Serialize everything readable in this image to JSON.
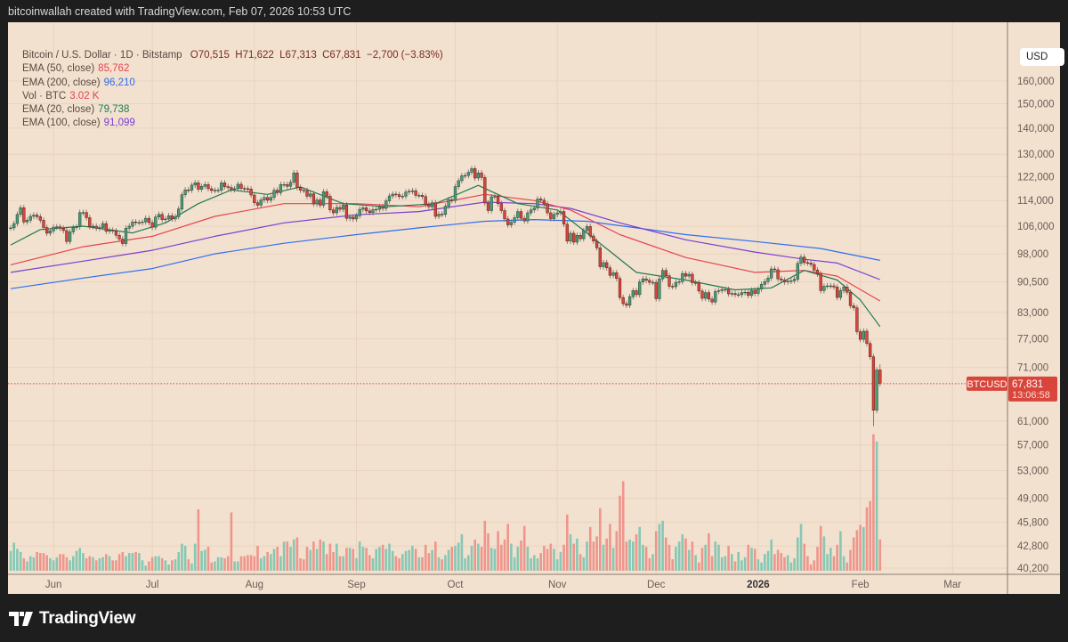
{
  "credit": "bitcoinwallah created with TradingView.com, Feb 07, 2026 10:53 UTC",
  "legend": {
    "symbol": "Bitcoin / U.S. Dollar · 1D · Bitstamp",
    "ohlc": "O70,515  H71,622  L67,313  C67,831  −2,700 (−3.83%)",
    "indicators": [
      {
        "label": "EMA (50, close)",
        "value": "85,762",
        "color": "#e8424f"
      },
      {
        "label": "EMA (200, close)",
        "value": "96,210",
        "color": "#2f6df0"
      },
      {
        "label": "Vol · BTC",
        "value": "3.02 K",
        "color": "#e8424f"
      },
      {
        "label": "EMA (20, close)",
        "value": "79,738",
        "color": "#1e7a52"
      },
      {
        "label": "EMA (100, close)",
        "value": "91,099",
        "color": "#7a3fd0"
      }
    ]
  },
  "currency_button": "USD",
  "last_price": {
    "symbol": "BTCUSD",
    "price": "67,831",
    "countdown": "13:06:58",
    "value": 67831,
    "color": "#d9453a"
  },
  "brand": "TradingView",
  "chart_data": {
    "type": "candlestick",
    "interval": "1D",
    "start_date": "2025-05-19",
    "end_date": "2026-02-07",
    "y_scale": "log",
    "ylim": [
      38500,
      175000
    ],
    "grid": true,
    "y_ticks": [
      160000,
      150000,
      140000,
      130000,
      122000,
      114000,
      106000,
      98000,
      90500,
      83000,
      77000,
      71000,
      61000,
      57000,
      53000,
      49000,
      45800,
      42800,
      40200
    ],
    "y_tick_labels": [
      "160,000",
      "150,000",
      "140,000",
      "130,000",
      "122,000",
      "114,000",
      "106,000",
      "98,000",
      "90,500",
      "83,000",
      "77,000",
      "71,000",
      "61,000",
      "57,000",
      "53,000",
      "49,000",
      "45,800",
      "42,800",
      "40,200"
    ],
    "x_ticks": [
      {
        "date": "2025-06-01",
        "label": "Jun"
      },
      {
        "date": "2025-07-01",
        "label": "Jul"
      },
      {
        "date": "2025-08-01",
        "label": "Aug"
      },
      {
        "date": "2025-09-01",
        "label": "Sep"
      },
      {
        "date": "2025-10-01",
        "label": "Oct"
      },
      {
        "date": "2025-11-01",
        "label": "Nov"
      },
      {
        "date": "2025-12-01",
        "label": "Dec"
      },
      {
        "date": "2026-01-01",
        "label": "2026",
        "bold": true
      },
      {
        "date": "2026-02-01",
        "label": "Feb"
      },
      {
        "date": "2026-03-01",
        "label": "Mar"
      }
    ],
    "colors": {
      "up": "#4c9a76",
      "down": "#d8453a",
      "vol_up": "#86c8b4",
      "vol_down": "#f0958c"
    },
    "close_k": [
      105.5,
      106.8,
      109.6,
      111.7,
      107.3,
      107.8,
      109.0,
      109.4,
      108.9,
      107.8,
      105.6,
      103.9,
      104.6,
      105.7,
      105.8,
      105.4,
      104.7,
      101.5,
      104.3,
      105.6,
      105.8,
      110.2,
      110.2,
      108.6,
      105.9,
      106.0,
      105.4,
      105.6,
      106.8,
      104.5,
      104.8,
      104.6,
      103.3,
      102.2,
      100.9,
      105.4,
      106.0,
      107.3,
      107.1,
      107.1,
      107.3,
      108.4,
      107.1,
      105.7,
      108.8,
      109.6,
      108.0,
      108.2,
      109.2,
      108.2,
      108.9,
      111.3,
      115.9,
      117.5,
      117.4,
      119.1,
      119.9,
      117.7,
      118.7,
      119.3,
      117.9,
      117.3,
      117.4,
      117.4,
      119.9,
      118.6,
      118.3,
      117.6,
      117.9,
      119.4,
      118.0,
      117.9,
      117.8,
      115.8,
      113.3,
      112.5,
      114.2,
      115.0,
      114.1,
      115.0,
      117.4,
      116.6,
      119.3,
      119.3,
      118.7,
      120.1,
      123.3,
      118.3,
      117.4,
      117.3,
      115.4,
      116.2,
      112.9,
      114.2,
      112.5,
      116.9,
      115.4,
      111.0,
      110.1,
      111.8,
      111.2,
      112.6,
      108.4,
      108.8,
      108.2,
      109.2,
      111.2,
      111.7,
      110.7,
      110.2,
      111.1,
      111.2,
      112.1,
      111.5,
      113.9,
      115.5,
      116.1,
      115.9,
      115.3,
      115.4,
      116.8,
      117.0,
      117.2,
      115.7,
      115.7,
      115.3,
      112.7,
      112.0,
      113.3,
      109.0,
      109.7,
      109.6,
      112.2,
      114.3,
      114.0,
      118.6,
      120.6,
      122.3,
      122.4,
      123.5,
      124.8,
      121.5,
      123.3,
      121.7,
      113.2,
      110.8,
      115.2,
      115.3,
      113.0,
      110.8,
      108.2,
      106.4,
      107.2,
      108.6,
      110.5,
      108.4,
      107.6,
      110.1,
      111.0,
      111.6,
      114.5,
      114.1,
      112.9,
      110.1,
      108.3,
      109.6,
      110.1,
      110.5,
      106.6,
      101.6,
      103.9,
      101.3,
      103.3,
      102.3,
      104.7,
      105.9,
      103.1,
      101.6,
      99.7,
      94.5,
      95.6,
      94.2,
      92.2,
      92.9,
      91.4,
      86.6,
      85.1,
      84.7,
      86.8,
      88.3,
      87.3,
      90.5,
      91.3,
      90.9,
      90.4,
      90.4,
      86.3,
      91.3,
      93.5,
      92.1,
      89.4,
      89.3,
      90.4,
      90.6,
      92.7,
      92.0,
      92.5,
      90.3,
      90.3,
      88.2,
      86.4,
      87.8,
      86.2,
      85.5,
      88.1,
      88.3,
      88.6,
      88.6,
      87.5,
      87.6,
      87.3,
      87.3,
      87.8,
      87.9,
      87.1,
      88.4,
      87.6,
      88.7,
      89.9,
      90.6,
      91.5,
      93.9,
      93.7,
      91.3,
      91.0,
      90.5,
      90.7,
      90.8,
      91.2,
      95.4,
      97.1,
      95.6,
      95.5,
      95.1,
      93.6,
      92.6,
      88.3,
      89.4,
      89.5,
      89.5,
      89.2,
      86.6,
      88.3,
      89.2,
      87.9,
      84.6,
      84.1,
      78.6,
      76.9,
      78.7,
      76.0,
      73.2,
      62.9,
      70.515,
      67.831
    ],
    "volume_k_btc": [
      1.9,
      2.7,
      2.1,
      1.8,
      1.2,
      0.9,
      1.4,
      1.3,
      1.8,
      1.7,
      1.7,
      1.5,
      1.2,
      1.0,
      1.3,
      1.6,
      1.6,
      1.3,
      1.0,
      1.4,
      1.9,
      2.2,
      1.7,
      1.2,
      1.4,
      1.3,
      1.0,
      1.2,
      1.3,
      1.6,
      1.4,
      1.0,
      1.0,
      1.6,
      1.8,
      1.4,
      1.7,
      1.7,
      1.8,
      1.7,
      1.0,
      0.5,
      0.9,
      1.3,
      1.4,
      1.4,
      1.2,
      1.0,
      0.6,
      1.0,
      1.1,
      1.8,
      2.6,
      2.4,
      1.1,
      0.7,
      2.6,
      5.9,
      1.9,
      2.0,
      2.3,
      0.8,
      0.9,
      1.3,
      1.3,
      1.2,
      1.4,
      5.6,
      0.9,
      0.9,
      1.4,
      1.4,
      1.5,
      1.5,
      1.4,
      2.4,
      1.2,
      1.4,
      1.8,
      1.6,
      2.1,
      2.3,
      1.4,
      2.8,
      2.8,
      2.3,
      3.0,
      3.2,
      1.2,
      1.1,
      2.3,
      2.0,
      2.8,
      2.1,
      3.0,
      2.8,
      1.6,
      2.6,
      1.8,
      2.6,
      1.4,
      1.4,
      2.2,
      2.2,
      2.1,
      1.2,
      2.8,
      2.3,
      2.2,
      1.5,
      1.2,
      2.1,
      2.3,
      2.5,
      2.1,
      2.6,
      1.9,
      1.4,
      1.2,
      1.6,
      1.9,
      2.0,
      2.4,
      2.1,
      1.3,
      1.3,
      2.5,
      1.7,
      2.0,
      2.8,
      1.3,
      1.1,
      1.5,
      2.0,
      2.3,
      2.4,
      2.7,
      3.5,
      1.2,
      1.5,
      2.4,
      3.0,
      2.6,
      2.3,
      4.8,
      3.6,
      2.2,
      2.1,
      3.8,
      2.5,
      3.0,
      4.5,
      2.6,
      1.3,
      2.3,
      2.9,
      4.3,
      2.3,
      1.2,
      1.5,
      1.2,
      1.7,
      2.4,
      2.1,
      2.6,
      2.1,
      1.1,
      1.8,
      2.5,
      5.4,
      3.5,
      2.6,
      3.1,
      1.6,
      1.3,
      2.8,
      4.2,
      2.8,
      3.3,
      6.0,
      2.5,
      3.1,
      4.5,
      2.2,
      3.8,
      7.2,
      8.6,
      2.8,
      3.0,
      2.8,
      3.5,
      4.2,
      2.5,
      2.3,
      1.2,
      1.6,
      3.8,
      4.5,
      4.8,
      3.2,
      2.5,
      1.1,
      2.3,
      2.8,
      3.5,
      3.1,
      2.0,
      2.8,
      1.5,
      0.8,
      2.2,
      2.5,
      3.6,
      1.4,
      2.8,
      2.5,
      1.3,
      1.4,
      2.4,
      1.6,
      0.9,
      1.8,
      1.0,
      1.3,
      2.5,
      2.2,
      2.1,
      1.1,
      0.8,
      1.6,
      1.9,
      3.0,
      1.6,
      2.0,
      1.7,
      1.3,
      1.5,
      0.8,
      1.2,
      3.2,
      4.5,
      2.6,
      1.4,
      0.6,
      1.0,
      2.3,
      4.3,
      3.3,
      1.6,
      2.2,
      1.4,
      2.5,
      3.8,
      1.4,
      0.8,
      2.0,
      3.2,
      3.9,
      4.4,
      4.2,
      6.1,
      6.7,
      13.1,
      12.4,
      3.02
    ],
    "last_candle": {
      "open": 70515,
      "high": 71622,
      "low": 67313,
      "close": 67831
    },
    "ema_series": [
      {
        "name": "EMA (200, close)",
        "color": "#2f6df0",
        "points": [
          [
            "2025-05-19",
            88.8
          ],
          [
            "2025-06-10",
            91.5
          ],
          [
            "2025-07-01",
            94
          ],
          [
            "2025-07-20",
            98
          ],
          [
            "2025-08-10",
            101
          ],
          [
            "2025-09-01",
            103.5
          ],
          [
            "2025-09-20",
            105.5
          ],
          [
            "2025-10-10",
            107.5
          ],
          [
            "2025-10-25",
            108
          ],
          [
            "2025-11-10",
            107.5
          ],
          [
            "2025-11-25",
            105.5
          ],
          [
            "2025-12-10",
            103.5
          ],
          [
            "2025-12-31",
            101.5
          ],
          [
            "2026-01-20",
            99.5
          ],
          [
            "2026-02-07",
            96.21
          ]
        ]
      },
      {
        "name": "EMA (100, close)",
        "color": "#7a3fd0",
        "points": [
          [
            "2025-05-19",
            93
          ],
          [
            "2025-06-10",
            96
          ],
          [
            "2025-07-01",
            99
          ],
          [
            "2025-07-20",
            103
          ],
          [
            "2025-08-10",
            107
          ],
          [
            "2025-09-01",
            109.5
          ],
          [
            "2025-09-20",
            110.5
          ],
          [
            "2025-10-10",
            113.5
          ],
          [
            "2025-10-25",
            113
          ],
          [
            "2025-11-05",
            111.5
          ],
          [
            "2025-11-20",
            107
          ],
          [
            "2025-12-10",
            102
          ],
          [
            "2025-12-31",
            98.5
          ],
          [
            "2026-01-15",
            96.5
          ],
          [
            "2026-01-25",
            95.5
          ],
          [
            "2026-02-07",
            91.1
          ]
        ]
      },
      {
        "name": "EMA (50, close)",
        "color": "#e8424f",
        "points": [
          [
            "2025-05-19",
            95
          ],
          [
            "2025-06-10",
            100
          ],
          [
            "2025-07-01",
            103
          ],
          [
            "2025-07-20",
            109
          ],
          [
            "2025-08-10",
            113
          ],
          [
            "2025-09-01",
            113
          ],
          [
            "2025-09-20",
            112
          ],
          [
            "2025-10-10",
            116
          ],
          [
            "2025-10-25",
            114
          ],
          [
            "2025-11-05",
            111
          ],
          [
            "2025-11-20",
            103.5
          ],
          [
            "2025-12-10",
            97
          ],
          [
            "2025-12-31",
            93
          ],
          [
            "2026-01-15",
            93.5
          ],
          [
            "2026-01-25",
            92
          ],
          [
            "2026-02-07",
            85.76
          ]
        ]
      },
      {
        "name": "EMA (20, close)",
        "color": "#1e7a52",
        "points": [
          [
            "2025-05-19",
            100.5
          ],
          [
            "2025-05-28",
            105
          ],
          [
            "2025-06-10",
            106
          ],
          [
            "2025-06-25",
            104
          ],
          [
            "2025-07-05",
            107
          ],
          [
            "2025-07-15",
            113
          ],
          [
            "2025-07-25",
            117.5
          ],
          [
            "2025-08-05",
            116
          ],
          [
            "2025-08-15",
            118.5
          ],
          [
            "2025-08-28",
            113
          ],
          [
            "2025-09-10",
            112
          ],
          [
            "2025-09-25",
            113
          ],
          [
            "2025-10-08",
            119
          ],
          [
            "2025-10-20",
            113
          ],
          [
            "2025-11-01",
            111
          ],
          [
            "2025-11-10",
            104
          ],
          [
            "2025-11-25",
            93
          ],
          [
            "2025-12-10",
            91
          ],
          [
            "2025-12-25",
            88.5
          ],
          [
            "2026-01-05",
            89
          ],
          [
            "2026-01-15",
            93.5
          ],
          [
            "2026-01-25",
            91
          ],
          [
            "2026-02-01",
            86
          ],
          [
            "2026-02-07",
            79.74
          ]
        ]
      }
    ]
  }
}
